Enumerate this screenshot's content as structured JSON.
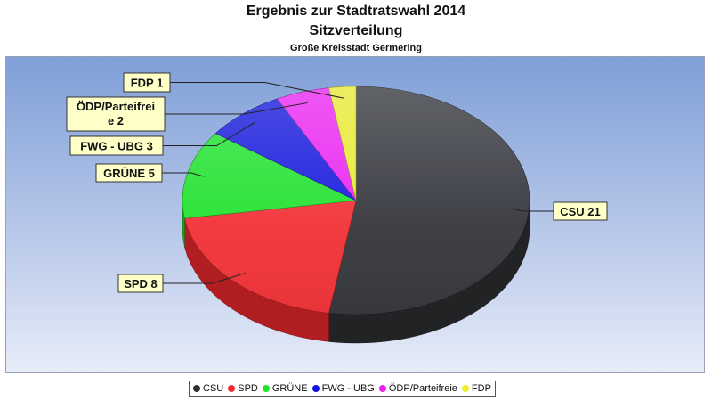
{
  "chart_data": {
    "type": "pie",
    "title": "Ergebnis zur Stadtratswahl 2014",
    "subtitle": "Sitzverteilung",
    "subtitle2": "Große Kreisstadt Germering",
    "legend_position": "bottom",
    "slices": [
      {
        "name": "CSU",
        "label": "CSU 21",
        "value": 21,
        "color": "#2f3034"
      },
      {
        "name": "SPD",
        "label": "SPD 8",
        "value": 8,
        "color": "#f52a2f"
      },
      {
        "name": "GRÜNE",
        "label": "GRÜNE 5",
        "value": 5,
        "color": "#1de427"
      },
      {
        "name": "FWG - UBG",
        "label": "FWG - UBG 3",
        "value": 3,
        "color": "#1212dc"
      },
      {
        "name": "ÖDP/Parteifreie",
        "label": "ÖDP/Parteifrei e 2",
        "value": 2,
        "color": "#ef1ff2"
      },
      {
        "name": "FDP",
        "label": "FDP 1",
        "value": 1,
        "color": "#eded2a"
      }
    ]
  }
}
